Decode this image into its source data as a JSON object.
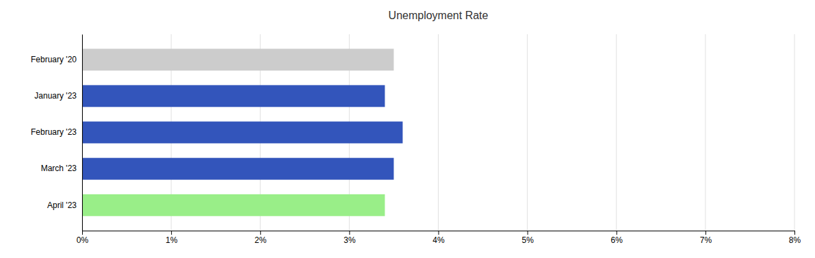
{
  "chart_data": {
    "type": "bar",
    "orientation": "horizontal",
    "title": "Unemployment Rate",
    "categories": [
      "February '20",
      "January '23",
      "February '23",
      "March '23",
      "April '23"
    ],
    "values": [
      3.5,
      3.4,
      3.6,
      3.5,
      3.4
    ],
    "colors": [
      "#cccccc",
      "#3355bb",
      "#3355bb",
      "#3355bb",
      "#99ee88"
    ],
    "xlim": [
      0,
      8
    ],
    "xticks": [
      {
        "value": 0,
        "label": "0%"
      },
      {
        "value": 1,
        "label": "1%"
      },
      {
        "value": 2,
        "label": "2%"
      },
      {
        "value": 3,
        "label": "3%"
      },
      {
        "value": 4,
        "label": "4%"
      },
      {
        "value": 5,
        "label": "5%"
      },
      {
        "value": 6,
        "label": "6%"
      },
      {
        "value": 7,
        "label": "7%"
      },
      {
        "value": 8,
        "label": "8%"
      }
    ],
    "grid": true
  }
}
